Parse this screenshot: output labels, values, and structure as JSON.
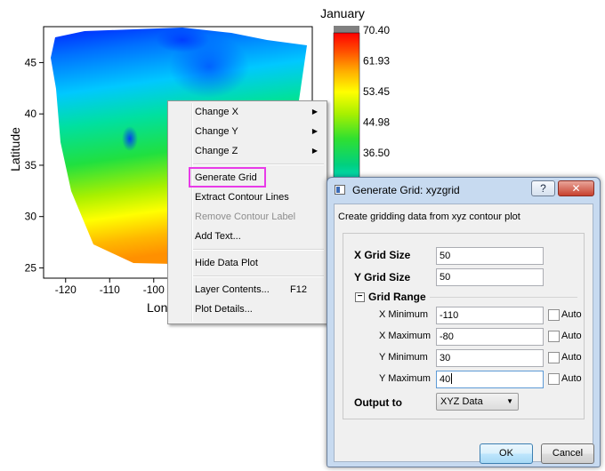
{
  "chart_data": {
    "type": "heatmap",
    "title": "January",
    "xlabel": "Longitude",
    "ylabel": "Latitude",
    "x_ticks": [
      -120,
      -110,
      -100
    ],
    "x_tick_labels": [
      "-120",
      "-110",
      "-100"
    ],
    "y_ticks": [
      25,
      30,
      35,
      40,
      45
    ],
    "y_tick_labels": [
      "25",
      "30",
      "35",
      "40",
      "45"
    ],
    "xlim": [
      -125,
      -64
    ],
    "ylim": [
      24,
      48.5
    ],
    "colorbar_ticks": [
      "70.40",
      "61.93",
      "53.45",
      "44.98",
      "36.50"
    ],
    "colorbar_range": [
      0,
      72
    ],
    "colors": [
      "#0000ff",
      "#0050ff",
      "#00a0ff",
      "#00e0e0",
      "#00d080",
      "#30e030",
      "#a8f000",
      "#ffff00",
      "#ffb000",
      "#ff5000",
      "#ff0000"
    ]
  },
  "context_menu": {
    "items": [
      {
        "label": "Change X",
        "arrow": "▶"
      },
      {
        "label": "Change Y",
        "arrow": "▶"
      },
      {
        "label": "Change Z",
        "arrow": "▶"
      },
      {
        "label": "Generate Grid"
      },
      {
        "label": "Extract Contour Lines"
      },
      {
        "label": "Remove Contour Label"
      },
      {
        "label": "Add Text..."
      },
      {
        "label": "Hide Data Plot"
      },
      {
        "label": "Layer Contents...",
        "shortcut": "F12"
      },
      {
        "label": "Plot Details..."
      }
    ]
  },
  "dialog": {
    "title": "Generate Grid: xyzgrid",
    "help_label": "?",
    "close_label": "✕",
    "description": "Create gridding data from xyz contour plot",
    "x_grid_size_label": "X Grid Size",
    "x_grid_size_value": "50",
    "y_grid_size_label": "Y Grid Size",
    "y_grid_size_value": "50",
    "collapse_symbol": "−",
    "grid_range_label": "Grid Range",
    "x_min_label": "X Minimum",
    "x_min_value": "-110",
    "x_max_label": "X Maximum",
    "x_max_value": "-80",
    "y_min_label": "Y Minimum",
    "y_min_value": "30",
    "y_max_label": "Y Maximum",
    "y_max_value": "40",
    "auto_label": "Auto",
    "output_label": "Output to",
    "output_value": "XYZ Data",
    "dropdown_arrow": "▼",
    "ok_label": "OK",
    "cancel_label": "Cancel"
  },
  "accent": {
    "highlight": "#e83ae8",
    "titlebar": "#c7daf0"
  }
}
